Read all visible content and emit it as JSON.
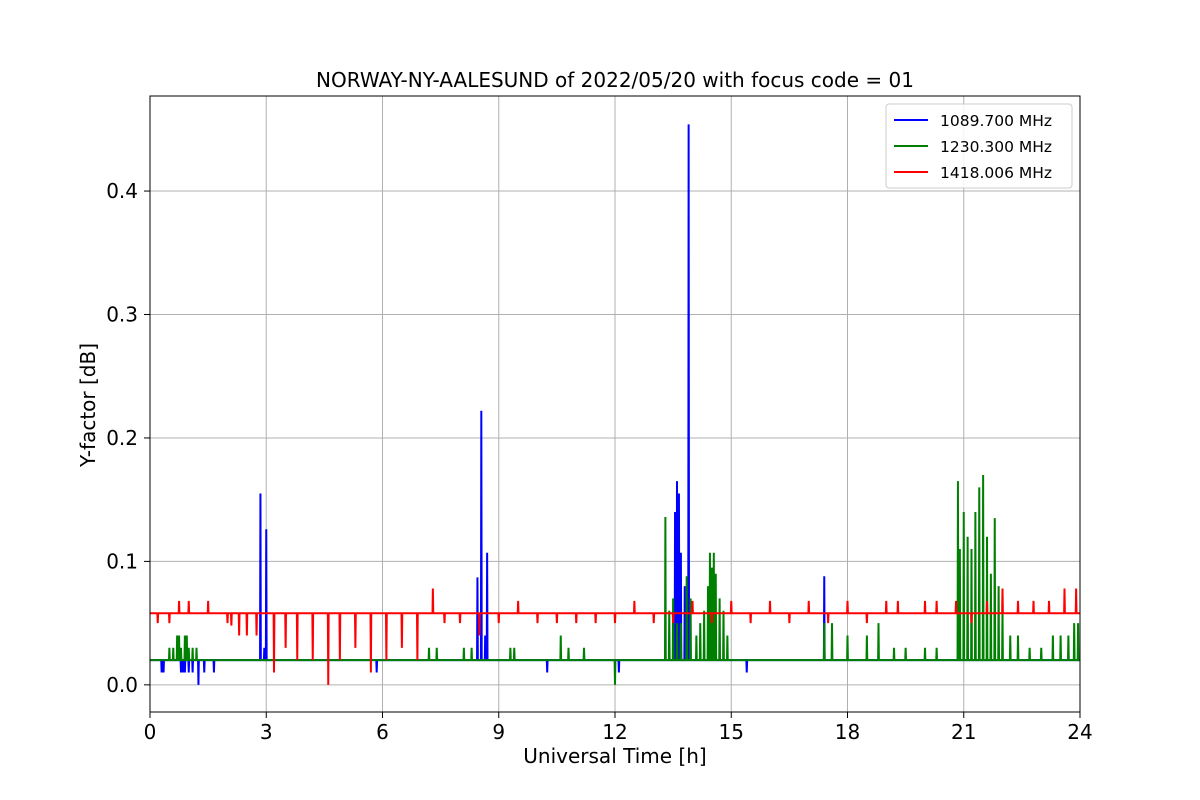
{
  "chart_data": {
    "type": "line",
    "title": "NORWAY-NY-AALESUND of 2022/05/20 with focus code = 01",
    "xlabel": "Universal Time [h]",
    "ylabel": "Y-factor [dB]",
    "xlim": [
      0,
      24
    ],
    "ylim": [
      -0.022,
      0.477
    ],
    "xticks": [
      0,
      3,
      6,
      9,
      12,
      15,
      18,
      21,
      24
    ],
    "xtick_labels": [
      "0",
      "3",
      "6",
      "9",
      "12",
      "15",
      "18",
      "21",
      "24"
    ],
    "yticks": [
      0.0,
      0.1,
      0.2,
      0.3,
      0.4
    ],
    "ytick_labels": [
      "0.0",
      "0.1",
      "0.2",
      "0.3",
      "0.4"
    ],
    "grid": true,
    "legend_position": "top-right",
    "series": [
      {
        "name": "1089.700 MHz",
        "color": "#0000ff",
        "baseline": 0.02,
        "spikes": [
          [
            0.3,
            0.01
          ],
          [
            0.35,
            0.01
          ],
          [
            0.8,
            0.01
          ],
          [
            0.85,
            0.01
          ],
          [
            0.9,
            0.01
          ],
          [
            1.0,
            0.01
          ],
          [
            1.1,
            0.01
          ],
          [
            1.25,
            0.0
          ],
          [
            1.4,
            0.01
          ],
          [
            1.65,
            0.01
          ],
          [
            2.85,
            0.155
          ],
          [
            2.95,
            0.03
          ],
          [
            3.0,
            0.126
          ],
          [
            5.85,
            0.01
          ],
          [
            8.45,
            0.087
          ],
          [
            8.55,
            0.222
          ],
          [
            8.65,
            0.04
          ],
          [
            8.7,
            0.107
          ],
          [
            10.25,
            0.01
          ],
          [
            12.1,
            0.01
          ],
          [
            13.55,
            0.14
          ],
          [
            13.6,
            0.165
          ],
          [
            13.65,
            0.155
          ],
          [
            13.7,
            0.107
          ],
          [
            13.8,
            0.08
          ],
          [
            13.9,
            0.454
          ],
          [
            15.4,
            0.01
          ],
          [
            17.4,
            0.088
          ],
          [
            21.0,
            0.02
          ],
          [
            21.5,
            0.02
          ],
          [
            22.0,
            0.02
          ]
        ]
      },
      {
        "name": "1230.300 MHz",
        "color": "#008000",
        "baseline": 0.02,
        "spikes": [
          [
            0.5,
            0.03
          ],
          [
            0.6,
            0.03
          ],
          [
            0.7,
            0.04
          ],
          [
            0.75,
            0.04
          ],
          [
            0.8,
            0.03
          ],
          [
            0.9,
            0.04
          ],
          [
            0.95,
            0.04
          ],
          [
            1.0,
            0.03
          ],
          [
            1.1,
            0.03
          ],
          [
            1.2,
            0.03
          ],
          [
            7.2,
            0.03
          ],
          [
            7.4,
            0.03
          ],
          [
            8.1,
            0.03
          ],
          [
            8.3,
            0.03
          ],
          [
            9.3,
            0.03
          ],
          [
            9.4,
            0.03
          ],
          [
            10.6,
            0.04
          ],
          [
            10.8,
            0.03
          ],
          [
            11.2,
            0.03
          ],
          [
            12.0,
            0.0
          ],
          [
            13.3,
            0.136
          ],
          [
            13.4,
            0.06
          ],
          [
            13.5,
            0.07
          ],
          [
            13.6,
            0.05
          ],
          [
            13.7,
            0.05
          ],
          [
            13.85,
            0.088
          ],
          [
            13.95,
            0.07
          ],
          [
            14.1,
            0.04
          ],
          [
            14.2,
            0.05
          ],
          [
            14.3,
            0.06
          ],
          [
            14.4,
            0.08
          ],
          [
            14.45,
            0.107
          ],
          [
            14.5,
            0.095
          ],
          [
            14.55,
            0.107
          ],
          [
            14.6,
            0.09
          ],
          [
            14.7,
            0.07
          ],
          [
            14.8,
            0.06
          ],
          [
            14.9,
            0.04
          ],
          [
            17.4,
            0.05
          ],
          [
            17.6,
            0.05
          ],
          [
            18.0,
            0.04
          ],
          [
            18.5,
            0.04
          ],
          [
            18.8,
            0.05
          ],
          [
            19.2,
            0.03
          ],
          [
            19.5,
            0.03
          ],
          [
            20.0,
            0.03
          ],
          [
            20.3,
            0.03
          ],
          [
            20.85,
            0.165
          ],
          [
            20.9,
            0.11
          ],
          [
            21.0,
            0.14
          ],
          [
            21.1,
            0.12
          ],
          [
            21.2,
            0.11
          ],
          [
            21.3,
            0.14
          ],
          [
            21.4,
            0.16
          ],
          [
            21.5,
            0.17
          ],
          [
            21.6,
            0.12
          ],
          [
            21.7,
            0.09
          ],
          [
            21.8,
            0.135
          ],
          [
            21.9,
            0.08
          ],
          [
            22.0,
            0.06
          ],
          [
            22.2,
            0.04
          ],
          [
            22.4,
            0.04
          ],
          [
            22.7,
            0.03
          ],
          [
            23.0,
            0.03
          ],
          [
            23.3,
            0.04
          ],
          [
            23.5,
            0.04
          ],
          [
            23.7,
            0.04
          ],
          [
            23.85,
            0.05
          ],
          [
            23.95,
            0.05
          ]
        ]
      },
      {
        "name": "1418.006 MHz",
        "color": "#ff0000",
        "baseline": 0.058,
        "spikes": [
          [
            0.2,
            0.05
          ],
          [
            0.5,
            0.05
          ],
          [
            0.75,
            0.068
          ],
          [
            1.0,
            0.068
          ],
          [
            1.5,
            0.068
          ],
          [
            2.0,
            0.05
          ],
          [
            2.1,
            0.048
          ],
          [
            2.3,
            0.04
          ],
          [
            2.5,
            0.04
          ],
          [
            2.75,
            0.04
          ],
          [
            3.2,
            0.01
          ],
          [
            3.5,
            0.03
          ],
          [
            3.8,
            0.02
          ],
          [
            4.2,
            0.02
          ],
          [
            4.6,
            0.0
          ],
          [
            4.9,
            0.02
          ],
          [
            5.3,
            0.03
          ],
          [
            5.7,
            0.01
          ],
          [
            6.1,
            0.02
          ],
          [
            6.5,
            0.03
          ],
          [
            6.9,
            0.02
          ],
          [
            7.3,
            0.078
          ],
          [
            7.6,
            0.05
          ],
          [
            8.0,
            0.05
          ],
          [
            8.5,
            0.04
          ],
          [
            9.0,
            0.05
          ],
          [
            9.5,
            0.068
          ],
          [
            10.0,
            0.05
          ],
          [
            10.5,
            0.05
          ],
          [
            11.0,
            0.05
          ],
          [
            11.5,
            0.05
          ],
          [
            12.0,
            0.05
          ],
          [
            12.5,
            0.068
          ],
          [
            13.0,
            0.05
          ],
          [
            13.5,
            0.05
          ],
          [
            14.0,
            0.068
          ],
          [
            14.5,
            0.05
          ],
          [
            15.0,
            0.068
          ],
          [
            15.5,
            0.05
          ],
          [
            16.0,
            0.068
          ],
          [
            16.5,
            0.05
          ],
          [
            17.0,
            0.068
          ],
          [
            17.5,
            0.05
          ],
          [
            18.0,
            0.068
          ],
          [
            18.5,
            0.05
          ],
          [
            19.0,
            0.068
          ],
          [
            19.3,
            0.068
          ],
          [
            20.0,
            0.068
          ],
          [
            20.3,
            0.068
          ],
          [
            20.8,
            0.068
          ],
          [
            21.2,
            0.05
          ],
          [
            21.6,
            0.068
          ],
          [
            22.0,
            0.078
          ],
          [
            22.4,
            0.068
          ],
          [
            22.8,
            0.068
          ],
          [
            23.2,
            0.068
          ],
          [
            23.6,
            0.078
          ],
          [
            23.9,
            0.078
          ]
        ]
      }
    ]
  }
}
